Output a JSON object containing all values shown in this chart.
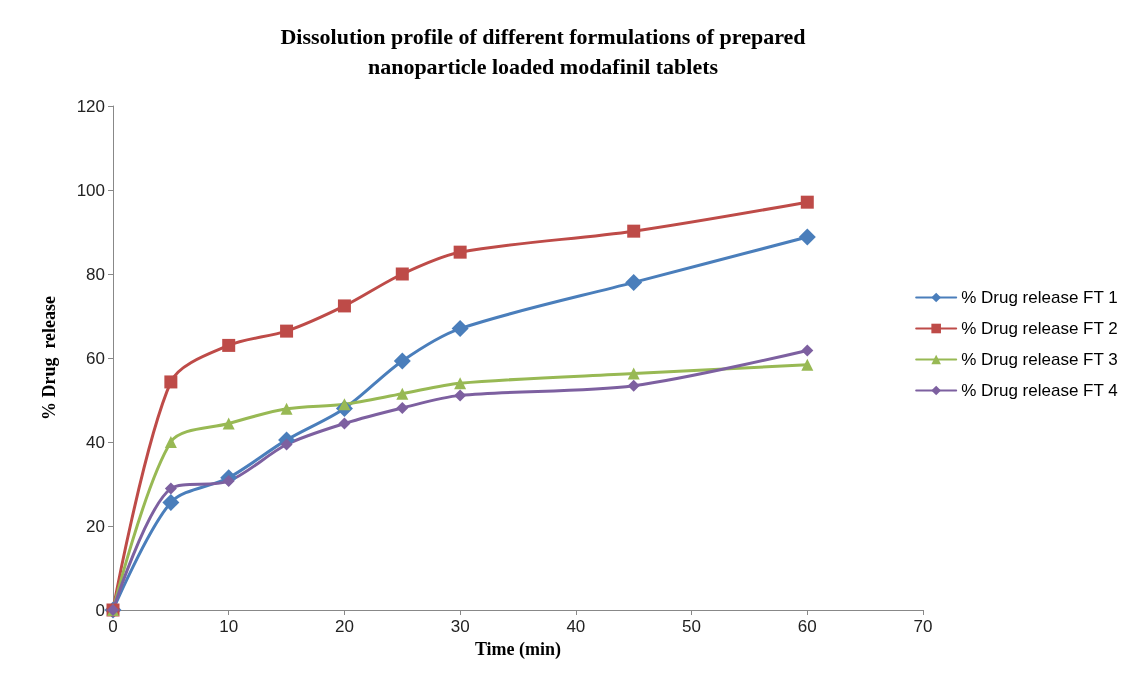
{
  "chart_data": {
    "type": "line",
    "title": "Dissolution profile of different formulations of prepared\nnanoparticle loaded modafinil tablets",
    "xlabel": "Time (min)",
    "ylabel": "% Drug  release",
    "x": [
      0,
      5,
      10,
      15,
      20,
      25,
      30,
      45,
      60
    ],
    "series": [
      {
        "name": "% Drug release FT 1",
        "color": "#4a7ebb",
        "marker": "diamond",
        "values": [
          0,
          25.6,
          31.5,
          40.5,
          48,
          59.3,
          67,
          78,
          88.8
        ]
      },
      {
        "name": "% Drug release FT 2",
        "color": "#be4b48",
        "marker": "square",
        "values": [
          0,
          54.3,
          63,
          66.4,
          72.4,
          80,
          85.2,
          90.2,
          97.1
        ]
      },
      {
        "name": "% Drug release FT 3",
        "color": "#98b954",
        "marker": "triangle",
        "values": [
          0,
          40,
          44.4,
          47.9,
          49,
          51.5,
          54,
          56.3,
          58.4
        ]
      },
      {
        "name": "% Drug release FT 4",
        "color": "#7d60a0",
        "marker": "diamond",
        "values": [
          0,
          28.9,
          30.7,
          39.4,
          44.4,
          48.1,
          51.1,
          53.4,
          61.8
        ]
      }
    ],
    "xlim": [
      0,
      70
    ],
    "xticks": [
      0,
      10,
      20,
      30,
      40,
      50,
      60,
      70
    ],
    "ylim": [
      0,
      120
    ],
    "yticks": [
      0,
      20,
      40,
      60,
      80,
      100,
      120
    ],
    "grid": false,
    "legend": "right",
    "line_style": "solid"
  }
}
